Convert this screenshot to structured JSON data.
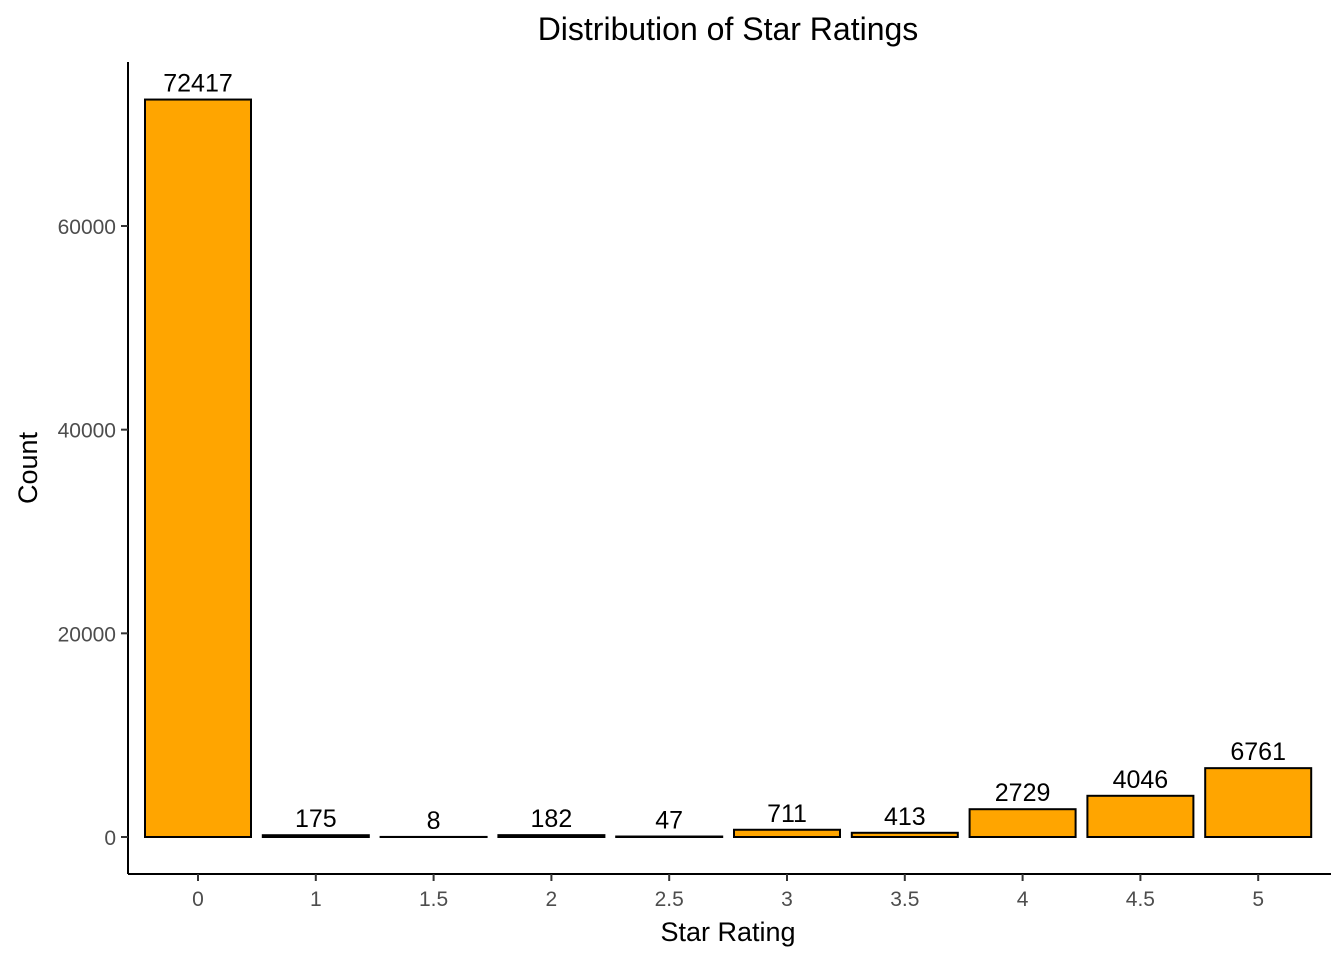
{
  "chart_data": {
    "type": "bar",
    "title": "Distribution of Star Ratings",
    "xlabel": "Star Rating",
    "ylabel": "Count",
    "categories": [
      "0",
      "1",
      "1.5",
      "2",
      "2.5",
      "3",
      "3.5",
      "4",
      "4.5",
      "5"
    ],
    "values": [
      72417,
      175,
      8,
      182,
      47,
      711,
      413,
      2729,
      4046,
      6761
    ],
    "ylim": [
      0,
      75000
    ],
    "y_ticks": [
      0,
      20000,
      40000,
      60000
    ],
    "y_tick_labels": [
      "0",
      "20000",
      "40000",
      "60000"
    ],
    "grid": false,
    "legend": "none",
    "colors": {
      "bar_fill": "#FFA500",
      "bar_outline": "#000000"
    }
  }
}
